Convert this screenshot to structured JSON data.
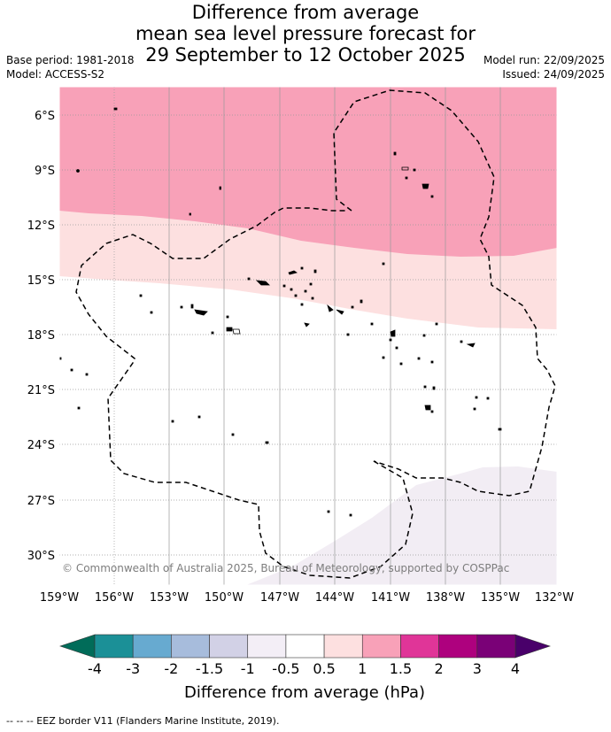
{
  "title": {
    "line1": "Difference from average",
    "line2": "mean sea level pressure forecast for",
    "line3": "29 September to 12 October 2025"
  },
  "meta": {
    "base_period": "Base period: 1981-2018",
    "model": "Model: ACCESS-S2",
    "model_run": "Model run: 22/09/2025",
    "issued": "Issued: 24/09/2025"
  },
  "map": {
    "lat_labels": [
      "6°S",
      "9°S",
      "12°S",
      "15°S",
      "18°S",
      "21°S",
      "24°S",
      "27°S",
      "30°S"
    ],
    "lon_labels": [
      "159°W",
      "156°W",
      "153°W",
      "150°W",
      "147°W",
      "144°W",
      "141°W",
      "138°W",
      "135°W",
      "132°W"
    ],
    "copyright": "© Commonwealth of Australia 2025, Bureau of Meteorology, supported by COSPPac",
    "colors": {
      "pink_1_1_5": "#f8a1b8",
      "pink_0_5_1": "#fde0e0",
      "white_neutral": "#ffffff",
      "lilac_m0_5_m1": "#f2edf4"
    }
  },
  "colorbar": {
    "title": "Difference from average (hPa)",
    "ticks": [
      "-4",
      "-3",
      "-2",
      "-1.5",
      "-1",
      "-0.5",
      "0.5",
      "1",
      "1.5",
      "2",
      "3",
      "4"
    ],
    "colors": [
      "#1b9097",
      "#67aad0",
      "#a7bcdc",
      "#d2d1e6",
      "#f3eef6",
      "#ffffff",
      "#fde0e0",
      "#f8a1b8",
      "#e03598",
      "#ae017e",
      "#7a0177"
    ],
    "under_color": "#016c59",
    "over_color": "#49006a"
  },
  "footnote": "-- -- -- EEZ border V11 (Flanders Marine Institute, 2019)."
}
